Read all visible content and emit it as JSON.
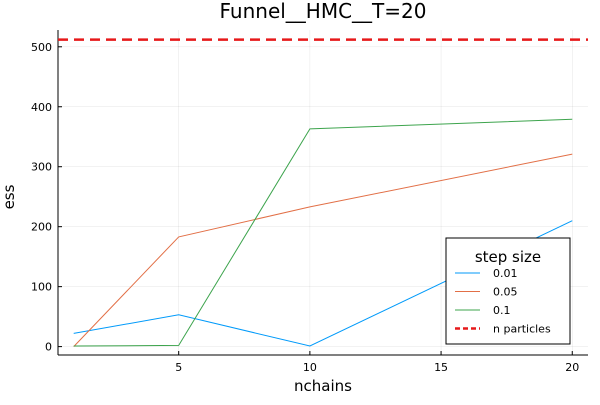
{
  "chart_data": {
    "type": "line",
    "title": "Funnel__HMC__T=20",
    "xlabel": "nchains",
    "ylabel": "ess",
    "xlim": [
      0.4,
      20.6
    ],
    "ylim": [
      -14,
      528
    ],
    "xticks": [
      5,
      10,
      15,
      20
    ],
    "yticks": [
      0,
      100,
      200,
      300,
      400,
      500
    ],
    "grid": true,
    "legend": {
      "title": "step size",
      "placement": "bottom-right"
    },
    "x": [
      1,
      5,
      10,
      20
    ],
    "series": [
      {
        "name": "0.01",
        "color": "#009AFA",
        "values": [
          22,
          53,
          1,
          210
        ]
      },
      {
        "name": "0.05",
        "color": "#E26F46",
        "values": [
          0,
          183,
          233,
          321
        ]
      },
      {
        "name": "0.1",
        "color": "#3DA44D",
        "values": [
          1,
          2,
          363,
          379
        ]
      }
    ],
    "hlines": [
      {
        "name": "n particles",
        "color": "#E6191A",
        "style": "dashed",
        "value": 512
      }
    ]
  }
}
